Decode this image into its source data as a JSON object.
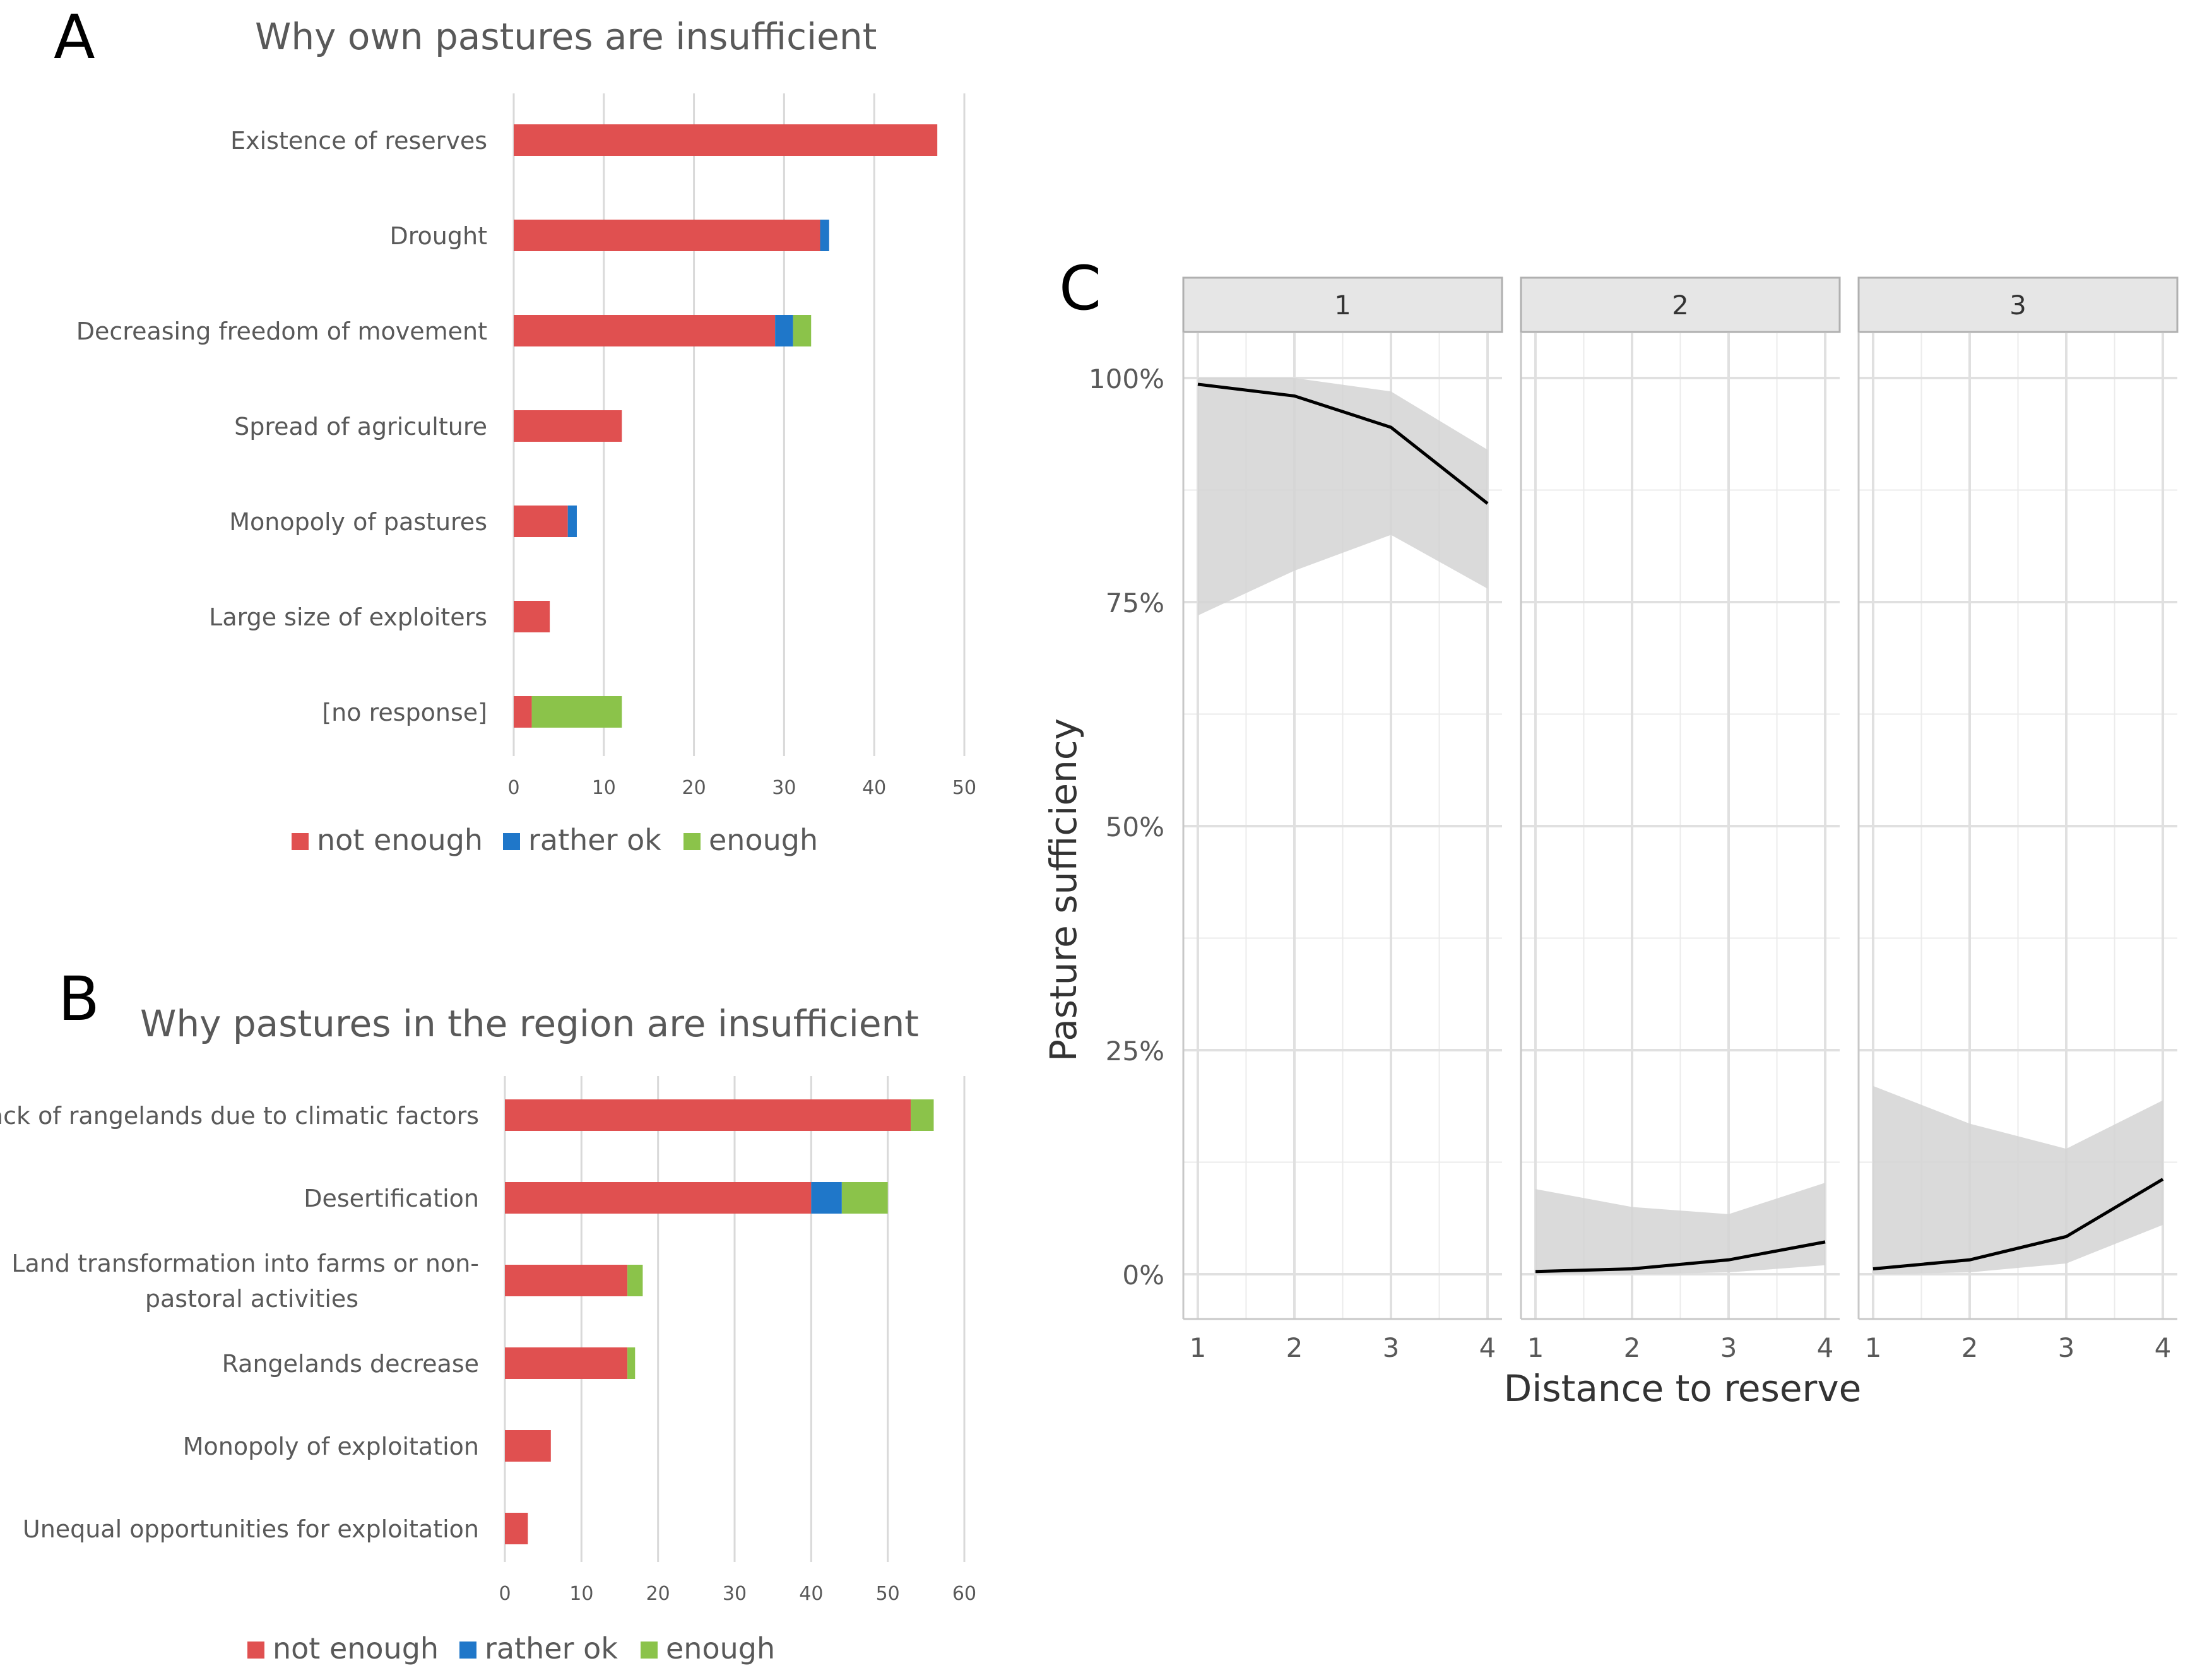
{
  "colors": {
    "not_enough": "#E05050",
    "rather_ok": "#1F77C9",
    "enough": "#8BC34A",
    "axis_text": "#595959",
    "title_text": "#595959",
    "grid": "#D9D9D9",
    "ribbon": "#D3D3D3",
    "strip_bg": "#E6E6E6",
    "strip_border": "#B0B0B0",
    "line": "#000000",
    "facet_grid": "#EBEBEB"
  },
  "chart_data": [
    {
      "panel_letter": "A",
      "type": "bar",
      "orientation": "horizontal",
      "stacked": true,
      "title": "Why own pastures are insufficient",
      "categories": [
        "Existence of reserves",
        "Drought",
        "Decreasing freedom of movement",
        "Spread of agriculture",
        "Monopoly of pastures",
        "Large size of exploiters",
        "[no response]"
      ],
      "series": [
        {
          "name": "not enough",
          "values": [
            47,
            34,
            29,
            12,
            6,
            4,
            2
          ]
        },
        {
          "name": "rather ok",
          "values": [
            0,
            1,
            2,
            0,
            1,
            0,
            0
          ]
        },
        {
          "name": "enough",
          "values": [
            0,
            0,
            2,
            0,
            0,
            0,
            10
          ]
        }
      ],
      "xlim": [
        0,
        50
      ],
      "xticks": [
        "0",
        "10",
        "20",
        "30",
        "40",
        "50"
      ],
      "xlabel": "",
      "ylabel": "",
      "legend": [
        "not enough",
        "rather ok",
        "enough"
      ],
      "legend_position": "bottom",
      "grid": true
    },
    {
      "panel_letter": "B",
      "type": "bar",
      "orientation": "horizontal",
      "stacked": true,
      "title": "Why pastures in the region are insufficient",
      "categories": [
        [
          "Lack of rangelands due to climatic factors"
        ],
        [
          "Desertification"
        ],
        [
          "Land transformation into farms or non-",
          "pastoral activities"
        ],
        [
          "Rangelands decrease"
        ],
        [
          "Monopoly of exploitation"
        ],
        [
          "Unequal opportunities for exploitation"
        ]
      ],
      "series": [
        {
          "name": "not enough",
          "values": [
            53,
            40,
            16,
            16,
            6,
            3
          ]
        },
        {
          "name": "rather ok",
          "values": [
            0,
            4,
            0,
            0,
            0,
            0
          ]
        },
        {
          "name": "enough",
          "values": [
            3,
            6,
            2,
            1,
            0,
            0
          ]
        }
      ],
      "xlim": [
        0,
        60
      ],
      "xticks": [
        "0",
        "10",
        "20",
        "30",
        "40",
        "50",
        "60"
      ],
      "xlabel": "",
      "ylabel": "",
      "legend": [
        "not enough",
        "rather ok",
        "enough"
      ],
      "legend_position": "bottom",
      "grid": true
    },
    {
      "panel_letter": "C",
      "type": "line",
      "facets": [
        "1",
        "2",
        "3"
      ],
      "x": [
        1,
        2,
        3,
        4
      ],
      "xticks": [
        "1",
        "2",
        "3",
        "4"
      ],
      "xlabel": "Distance to reserve",
      "ylabel": "Pasture sufficiency",
      "ylim": [
        -0.05,
        1.05
      ],
      "yticks": [
        0,
        0.25,
        0.5,
        0.75,
        1.0
      ],
      "ytick_labels": [
        "0%",
        "25%",
        "50%",
        "75%",
        "100%"
      ],
      "series": [
        {
          "facet": "1",
          "y": [
            0.993,
            0.98,
            0.945,
            0.86
          ],
          "lower": [
            0.735,
            0.785,
            0.825,
            0.765
          ],
          "upper": [
            1.0,
            1.0,
            0.985,
            0.92
          ]
        },
        {
          "facet": "2",
          "y": [
            0.003,
            0.006,
            0.016,
            0.036
          ],
          "lower": [
            0.0,
            0.0,
            0.002,
            0.01
          ],
          "upper": [
            0.095,
            0.075,
            0.067,
            0.102
          ]
        },
        {
          "facet": "3",
          "y": [
            0.006,
            0.016,
            0.042,
            0.106
          ],
          "lower": [
            0.0,
            0.002,
            0.012,
            0.055
          ],
          "upper": [
            0.21,
            0.168,
            0.14,
            0.194
          ]
        }
      ],
      "grid": true
    }
  ]
}
